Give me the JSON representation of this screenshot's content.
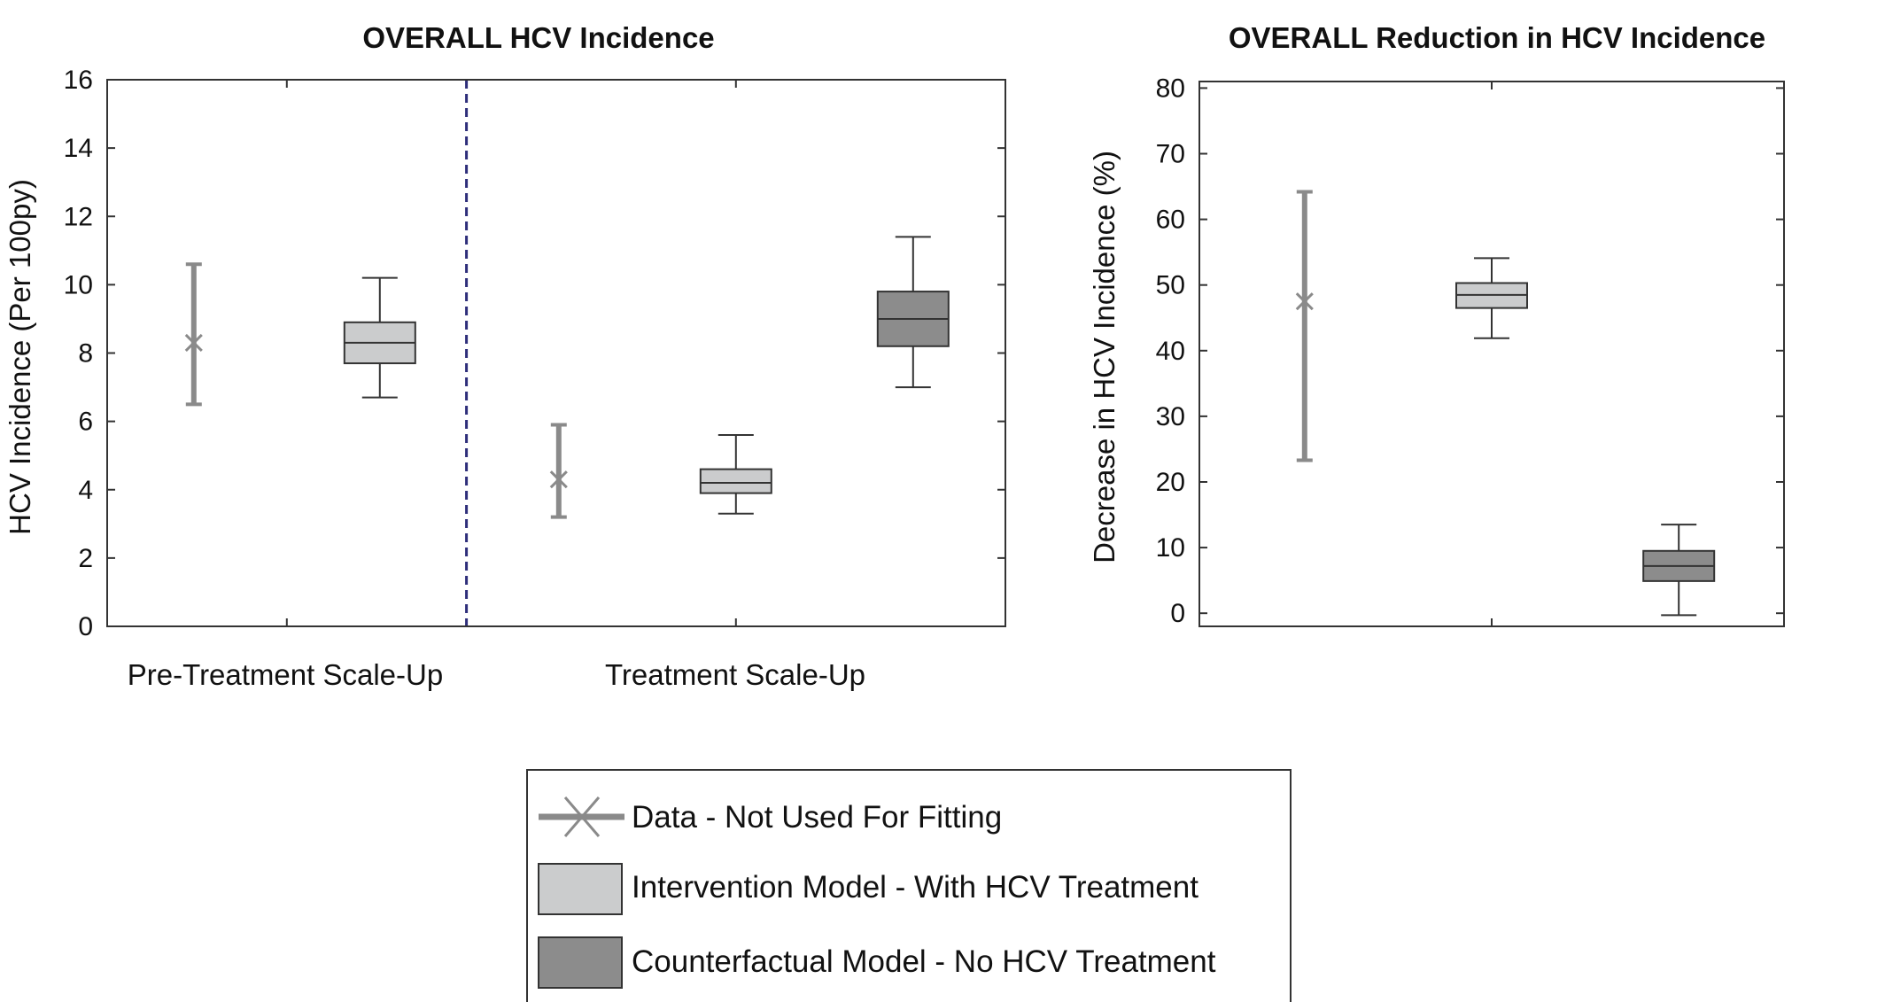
{
  "colors": {
    "data_marker": "#8a8a8a",
    "intervention": "#cbcccd",
    "counterfactual": "#8c8c8c",
    "divider": "#2e2e7a",
    "axis": "#333333"
  },
  "legend": {
    "items": [
      {
        "label": "Data - Not Used For Fitting",
        "kind": "data"
      },
      {
        "label": "Intervention Model - With HCV Treatment",
        "kind": "intervention"
      },
      {
        "label": "Counterfactual Model - No HCV Treatment",
        "kind": "counterfactual"
      }
    ]
  },
  "chart_data": [
    {
      "type": "box",
      "title": "OVERALL HCV Incidence",
      "ylabel": "HCV Incidence (Per 100py)",
      "xlabel": "",
      "ylim": [
        0,
        16
      ],
      "yticks": [
        0,
        2,
        4,
        6,
        8,
        10,
        12,
        14,
        16
      ],
      "grid": false,
      "categories": [
        "Pre-Treatment Scale-Up",
        "Treatment Scale-Up"
      ],
      "divider_between_categories": true,
      "series": [
        {
          "name": "Data - Not Used For Fitting",
          "kind": "data",
          "points": [
            {
              "category": "Pre-Treatment Scale-Up",
              "value": 8.3,
              "low": 6.5,
              "high": 10.6
            },
            {
              "category": "Treatment Scale-Up",
              "value": 4.3,
              "low": 3.2,
              "high": 5.9
            }
          ]
        },
        {
          "name": "Intervention Model - With HCV Treatment",
          "kind": "intervention",
          "points": [
            {
              "category": "Pre-Treatment Scale-Up",
              "min": 6.7,
              "q1": 7.7,
              "median": 8.3,
              "q3": 8.9,
              "max": 10.2
            },
            {
              "category": "Treatment Scale-Up",
              "min": 3.3,
              "q1": 3.9,
              "median": 4.2,
              "q3": 4.6,
              "max": 5.6
            }
          ]
        },
        {
          "name": "Counterfactual Model - No HCV Treatment",
          "kind": "counterfactual",
          "points": [
            {
              "category": "Treatment Scale-Up",
              "min": 7.0,
              "q1": 8.2,
              "median": 9.0,
              "q3": 9.8,
              "max": 11.4
            }
          ]
        }
      ]
    },
    {
      "type": "box",
      "title": "OVERALL Reduction in HCV Incidence",
      "ylabel": "Decrease in HCV Incidence (%)",
      "xlabel": "",
      "ylim": [
        -2,
        81
      ],
      "yticks": [
        0,
        10,
        20,
        30,
        40,
        50,
        60,
        70,
        80
      ],
      "grid": false,
      "series": [
        {
          "name": "Data - Not Used For Fitting",
          "kind": "data",
          "points": [
            {
              "value": 47.5,
              "low": 23.3,
              "high": 64.2
            }
          ]
        },
        {
          "name": "Intervention Model - With HCV Treatment",
          "kind": "intervention",
          "points": [
            {
              "min": 41.9,
              "q1": 46.5,
              "median": 48.5,
              "q3": 50.3,
              "max": 54.1
            }
          ]
        },
        {
          "name": "Counterfactual Model - No HCV Treatment",
          "kind": "counterfactual",
          "points": [
            {
              "min": -0.3,
              "q1": 4.9,
              "median": 7.2,
              "q3": 9.5,
              "max": 13.5
            }
          ]
        }
      ]
    }
  ]
}
